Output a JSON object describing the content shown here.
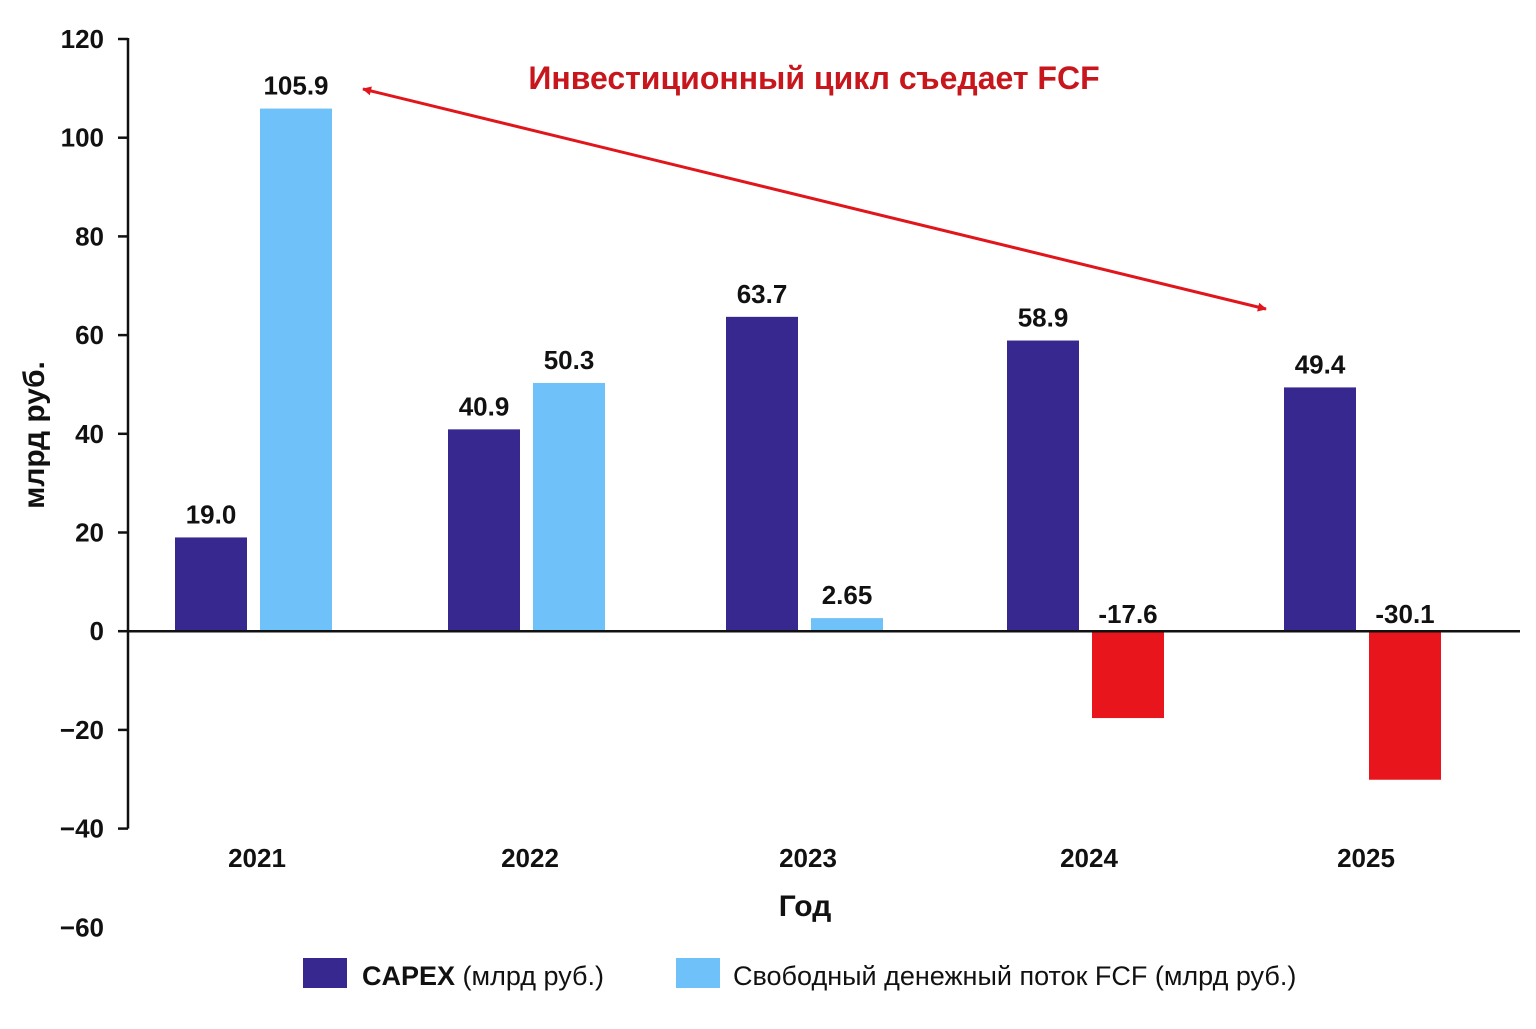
{
  "chart_data": {
    "type": "bar",
    "categories": [
      "2021",
      "2022",
      "2023",
      "2024",
      "2025"
    ],
    "series": [
      {
        "key": "capex",
        "color": "#37288f",
        "legend_bold": "CAPEX",
        "legend_rest": " (млрд руб.)",
        "values": [
          19.0,
          40.9,
          63.7,
          58.9,
          49.4
        ],
        "labels": [
          "19.0",
          "40.9",
          "63.7",
          "58.9",
          "49.4"
        ]
      },
      {
        "key": "fcf",
        "color": "#6ec1f9",
        "negative_color": "#e8161c",
        "legend_bold": "",
        "legend_rest": "Свободный денежный поток FCF (млрд руб.)",
        "values": [
          105.9,
          50.3,
          2.65,
          -17.6,
          -30.1
        ],
        "labels": [
          "105.9",
          "50.3",
          "2.65",
          "-17.6",
          "-30.1"
        ]
      }
    ],
    "xlabel": "Год",
    "ylabel": "млрд руб.",
    "ylim": [
      -40,
      120
    ],
    "yticks": [
      120,
      100,
      80,
      60,
      40,
      20,
      0,
      -20,
      -40,
      -60
    ],
    "ytick_labels": [
      "120",
      "100",
      "80",
      "60",
      "40",
      "20",
      "0",
      "−20",
      "−40",
      "−60"
    ],
    "grid": false,
    "legend_position": "bottom",
    "annotation": {
      "text": "Инвестиционный цикл съедает FCF",
      "color": "#c8161d",
      "arrow_color": "#e0161c"
    }
  }
}
